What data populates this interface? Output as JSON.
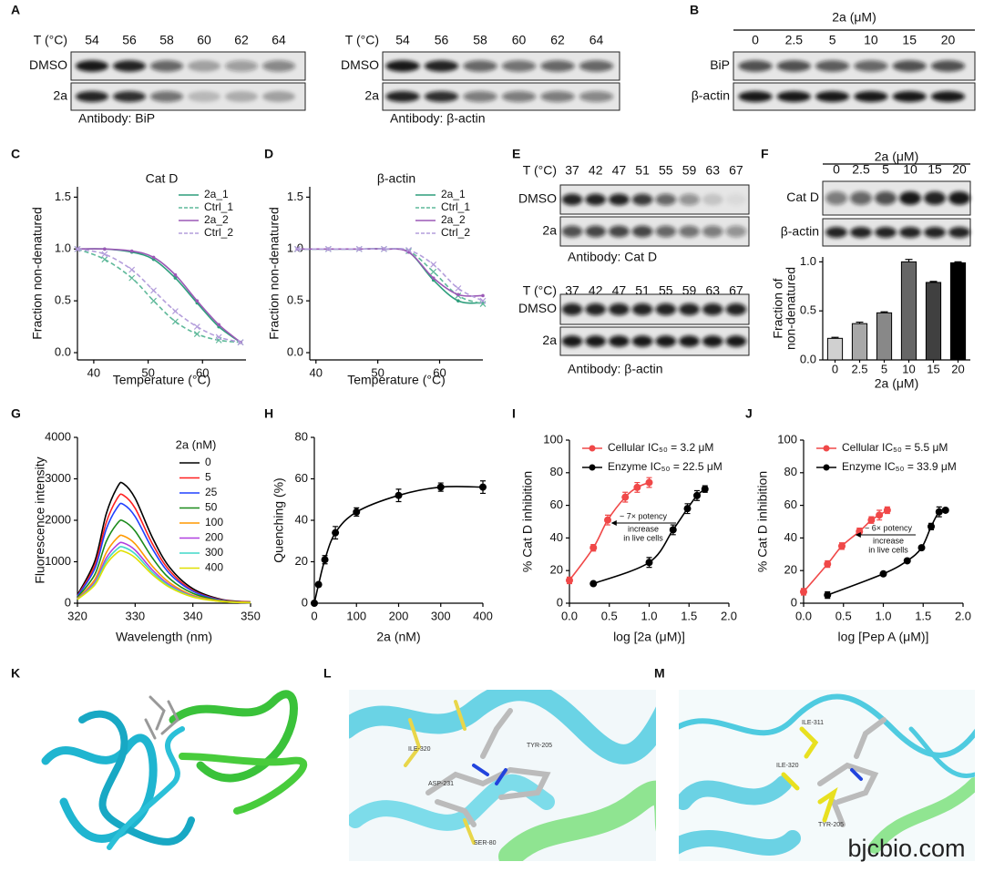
{
  "panel_labels": [
    "A",
    "B",
    "C",
    "D",
    "E",
    "F",
    "G",
    "H",
    "I",
    "J",
    "K",
    "L",
    "M"
  ],
  "blots": [
    {
      "header": "T (°C)",
      "columns": [
        "54",
        "56",
        "58",
        "60",
        "62",
        "64"
      ],
      "rows": [
        "DMSO",
        "2a"
      ],
      "caption": "Antibody: BiP"
    },
    {
      "header": "T (°C)",
      "columns": [
        "54",
        "56",
        "58",
        "60",
        "62",
        "64"
      ],
      "rows": [
        "DMSO",
        "2a"
      ],
      "caption": "Antibody: β-actin"
    },
    {
      "title": "2a (μM)",
      "columns": [
        "0",
        "2.5",
        "5",
        "10",
        "15",
        "20"
      ],
      "rows": [
        "BiP",
        "β-actin"
      ]
    },
    {
      "header": "T (°C)",
      "columns": [
        "37",
        "42",
        "47",
        "51",
        "55",
        "59",
        "63",
        "67"
      ],
      "rows": [
        "DMSO",
        "2a"
      ],
      "caption": "Antibody: Cat D"
    },
    {
      "header": "T (°C)",
      "columns": [
        "37",
        "42",
        "47",
        "51",
        "55",
        "59",
        "63",
        "67"
      ],
      "rows": [
        "DMSO",
        "2a"
      ],
      "caption": "Antibody: β-actin"
    },
    {
      "title": "2a (μM)",
      "columns": [
        "0",
        "2.5",
        "5",
        "10",
        "15",
        "20"
      ],
      "rows": [
        "Cat D",
        "β-actin"
      ]
    }
  ],
  "chart_data": [
    {
      "type": "line",
      "title": "Cat D",
      "xlabel": "Temperature (°C)",
      "ylabel": "Fraction non-denatured",
      "xlim": [
        37,
        68
      ],
      "ylim": [
        -0.07,
        1.6
      ],
      "xticks": [
        40,
        50,
        60
      ],
      "yticks": [
        {
          "value": 0,
          "label": "0.0"
        },
        {
          "value": 0.5,
          "label": "0.5"
        },
        {
          "value": 1,
          "label": "1.0"
        },
        {
          "value": 1.5,
          "label": "1.5"
        }
      ],
      "legend": "upper right",
      "x": [
        37,
        42,
        47,
        51,
        55,
        59,
        63,
        67
      ],
      "series": [
        {
          "name": "2a_1",
          "color": "#2e9e7c",
          "marker": "dot",
          "values": [
            1.0,
            1.0,
            0.97,
            0.9,
            0.72,
            0.48,
            0.25,
            0.1
          ]
        },
        {
          "name": "Ctrl_1",
          "color": "#5fb99a",
          "dash": true,
          "marker": "x",
          "values": [
            1.0,
            0.9,
            0.72,
            0.5,
            0.3,
            0.18,
            0.12,
            0.1
          ]
        },
        {
          "name": "2a_2",
          "color": "#9b59b6",
          "marker": "dot",
          "values": [
            1.0,
            1.0,
            0.98,
            0.92,
            0.75,
            0.5,
            0.27,
            0.1
          ]
        },
        {
          "name": "Ctrl_2",
          "color": "#b39ddb",
          "dash": true,
          "marker": "x",
          "values": [
            1.0,
            0.95,
            0.8,
            0.6,
            0.4,
            0.25,
            0.15,
            0.1
          ]
        }
      ]
    },
    {
      "type": "line",
      "title": "β-actin",
      "xlabel": "Temperature (°C)",
      "ylabel": "Fraction non-denatured",
      "xlim": [
        39,
        67
      ],
      "ylim": [
        -0.07,
        1.6
      ],
      "xticks": [
        40,
        50,
        60
      ],
      "yticks": [
        {
          "value": 0,
          "label": "0.0"
        },
        {
          "value": 0.5,
          "label": "0.5"
        },
        {
          "value": 1,
          "label": "1.0"
        },
        {
          "value": 1.5,
          "label": "1.5"
        }
      ],
      "legend": "upper right",
      "x": [
        37,
        42,
        47,
        51,
        55,
        59,
        63,
        67
      ],
      "series": [
        {
          "name": "2a_1",
          "color": "#2e9e7c",
          "marker": "dot",
          "values": [
            1.0,
            1.0,
            1.0,
            1.0,
            0.97,
            0.7,
            0.5,
            0.48
          ]
        },
        {
          "name": "Ctrl_1",
          "color": "#5fb99a",
          "dash": true,
          "marker": "x",
          "values": [
            1.0,
            1.0,
            1.0,
            1.0,
            0.98,
            0.78,
            0.55,
            0.47
          ]
        },
        {
          "name": "2a_2",
          "color": "#9b59b6",
          "marker": "dot",
          "values": [
            1.0,
            1.0,
            1.0,
            1.0,
            0.97,
            0.72,
            0.56,
            0.55
          ]
        },
        {
          "name": "Ctrl_2",
          "color": "#b39ddb",
          "dash": true,
          "marker": "x",
          "values": [
            1.0,
            1.0,
            1.0,
            1.0,
            0.99,
            0.85,
            0.62,
            0.5
          ]
        }
      ]
    },
    {
      "type": "bar",
      "xlabel": "2a (μM)",
      "ylabel": [
        "Fraction of",
        "non-denatured"
      ],
      "categories": [
        "0",
        "2.5",
        "5",
        "10",
        "15",
        "20"
      ],
      "values": [
        0.22,
        0.37,
        0.48,
        1.0,
        0.79,
        0.99
      ],
      "errors": [
        0.01,
        0.015,
        0.01,
        0.025,
        0.01,
        0.01
      ],
      "colors": [
        "#d0d0d0",
        "#a8a8a8",
        "#888888",
        "#666666",
        "#404040",
        "#000000"
      ],
      "ylim": [
        0,
        1.05
      ],
      "yticks": [
        {
          "value": 0,
          "label": "0.0"
        },
        {
          "value": 0.5,
          "label": "0.5"
        },
        {
          "value": 1,
          "label": "1.0"
        }
      ]
    },
    {
      "type": "line",
      "xlabel": "Wavelength (nm)",
      "ylabel": "Fluorescence intensity",
      "xlim": [
        320,
        350
      ],
      "ylim": [
        0,
        4000
      ],
      "xticks": [
        320,
        330,
        340,
        350
      ],
      "yticks": [
        0,
        1000,
        2000,
        3000,
        4000
      ],
      "legend": "upper right",
      "legend_title": "2a (nM)",
      "x": [
        320,
        323,
        325,
        327,
        328,
        330,
        333,
        336,
        340,
        345,
        350
      ],
      "series": [
        {
          "name": "0",
          "color": "#000000",
          "values": [
            200,
            1010,
            2160,
            2820,
            2880,
            2530,
            1580,
            860,
            350,
            90,
            30
          ]
        },
        {
          "name": "5",
          "color": "#ff2020",
          "values": [
            180,
            910,
            1950,
            2550,
            2600,
            2290,
            1430,
            780,
            310,
            80,
            30
          ]
        },
        {
          "name": "25",
          "color": "#2040ff",
          "values": [
            170,
            830,
            1790,
            2330,
            2380,
            2090,
            1310,
            710,
            290,
            70,
            20
          ]
        },
        {
          "name": "50",
          "color": "#1a8a1a",
          "values": [
            140,
            690,
            1490,
            1940,
            1980,
            1740,
            1090,
            590,
            240,
            60,
            20
          ]
        },
        {
          "name": "100",
          "color": "#ff9900",
          "values": [
            110,
            570,
            1220,
            1590,
            1620,
            1430,
            890,
            490,
            190,
            50,
            20
          ]
        },
        {
          "name": "200",
          "color": "#b040e0",
          "values": [
            100,
            510,
            1090,
            1420,
            1450,
            1280,
            800,
            440,
            170,
            40,
            10
          ]
        },
        {
          "name": "300",
          "color": "#40d8c8",
          "values": [
            90,
            470,
            1010,
            1320,
            1350,
            1190,
            740,
            410,
            160,
            40,
            10
          ]
        },
        {
          "name": "400",
          "color": "#e0e000",
          "values": [
            90,
            440,
            940,
            1230,
            1250,
            1100,
            690,
            380,
            150,
            40,
            10
          ]
        }
      ]
    },
    {
      "type": "line",
      "xlabel": "2a (nM)",
      "ylabel": "Quenching (%)",
      "xlim": [
        0,
        400
      ],
      "ylim": [
        0,
        80
      ],
      "xticks": [
        0,
        100,
        200,
        300,
        400
      ],
      "yticks": [
        0,
        20,
        40,
        60,
        80
      ],
      "x": [
        0,
        10,
        25,
        50,
        100,
        200,
        300,
        400
      ],
      "series": [
        {
          "color": "#000000",
          "marker": "circle",
          "values": [
            0,
            9,
            21,
            34,
            44,
            52,
            56,
            56
          ],
          "errors": [
            0,
            1,
            2,
            3,
            2,
            3,
            2,
            3
          ]
        }
      ]
    },
    {
      "type": "line",
      "xlabel": "log [2a (μM)]",
      "ylabel": "% Cat D inhibition",
      "xlim": [
        0,
        2
      ],
      "ylim": [
        0,
        100
      ],
      "xticks": [
        {
          "value": 0,
          "label": "0.0"
        },
        {
          "value": 0.5,
          "label": "0.5"
        },
        {
          "value": 1,
          "label": "1.0"
        },
        {
          "value": 1.5,
          "label": "1.5"
        },
        {
          "value": 2,
          "label": "2.0"
        }
      ],
      "yticks": [
        0,
        20,
        40,
        60,
        80,
        100
      ],
      "legend": "upper left",
      "annotation": [
        "~ 7× potency",
        "increase",
        "in live cells"
      ],
      "series": [
        {
          "name": "Cellular IC₅₀ = 3.2 μM",
          "color": "#f04848",
          "marker": "circle",
          "x": [
            0,
            0.3,
            0.48,
            0.7,
            0.85,
            1.0
          ],
          "values": [
            14,
            34,
            51,
            65,
            71,
            74
          ],
          "errors": [
            2,
            2,
            3,
            3,
            3,
            3
          ]
        },
        {
          "name": "Enzyme IC₅₀ = 22.5 μM",
          "color": "#000000",
          "marker": "circle",
          "x": [
            0.3,
            1.0,
            1.3,
            1.48,
            1.6,
            1.7
          ],
          "values": [
            12,
            25,
            45,
            58,
            66,
            70
          ],
          "errors": [
            1,
            3,
            3,
            3,
            3,
            2
          ]
        }
      ]
    },
    {
      "type": "line",
      "xlabel": "log [Pep A (μM)]",
      "ylabel": "% Cat D inhibition",
      "xlim": [
        0,
        2
      ],
      "ylim": [
        0,
        100
      ],
      "xticks": [
        {
          "value": 0,
          "label": "0.0"
        },
        {
          "value": 0.5,
          "label": "0.5"
        },
        {
          "value": 1,
          "label": "1.0"
        },
        {
          "value": 1.5,
          "label": "1.5"
        },
        {
          "value": 2,
          "label": "2.0"
        }
      ],
      "yticks": [
        0,
        20,
        40,
        60,
        80,
        100
      ],
      "legend": "upper left",
      "annotation": [
        "~ 6× potency",
        "increase",
        "in live cells"
      ],
      "series": [
        {
          "name": "Cellular IC₅₀ = 5.5 μM",
          "color": "#f04848",
          "marker": "circle",
          "x": [
            0,
            0.3,
            0.48,
            0.7,
            0.85,
            0.95,
            1.05
          ],
          "values": [
            7,
            24,
            35,
            44,
            51,
            54,
            57
          ],
          "errors": [
            2,
            2,
            2,
            2,
            2,
            3,
            2
          ]
        },
        {
          "name": "Enzyme IC₅₀ = 33.9 μM",
          "color": "#000000",
          "marker": "circle",
          "x": [
            0.3,
            1.0,
            1.3,
            1.48,
            1.6,
            1.7,
            1.78
          ],
          "values": [
            5,
            18,
            26,
            34,
            47,
            56,
            57
          ],
          "errors": [
            2,
            1,
            1,
            1,
            2,
            3,
            1
          ]
        }
      ]
    }
  ],
  "structures": {
    "L": [
      "ILE-320",
      "TYR-205",
      "ASP-231",
      "SER-80"
    ],
    "M": [
      "ILE-311",
      "ILE-320",
      "TYR-205"
    ]
  },
  "watermark": "bjcbio.com"
}
